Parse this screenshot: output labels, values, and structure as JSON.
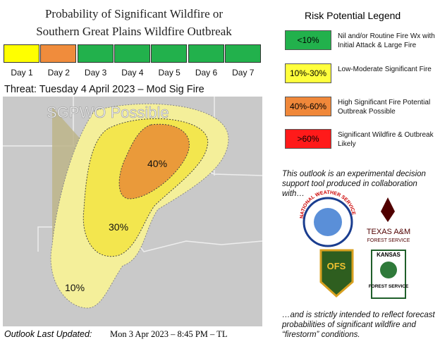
{
  "header": {
    "title_lines": [
      "Probability of  Significant Wildfire or",
      "Southern Great Plains Wildfire Outbreak"
    ]
  },
  "days": [
    {
      "label": "Day 1",
      "color": "#ffff00"
    },
    {
      "label": "Day 2",
      "color": "#f08c3c"
    },
    {
      "label": "Day 3",
      "color": "#22b14c"
    },
    {
      "label": "Day 4",
      "color": "#22b14c"
    },
    {
      "label": "Day 5",
      "color": "#22b14c"
    },
    {
      "label": "Day 6",
      "color": "#22b14c"
    },
    {
      "label": "Day 7",
      "color": "#22b14c"
    }
  ],
  "threat": "Threat: Tuesday 4 April 2023 – Mod Sig Fire",
  "map": {
    "overlay_label": "SGPWO Possible",
    "contour_labels": [
      "40%",
      "30%",
      "10%"
    ]
  },
  "legend": {
    "title": "Risk Potential Legend",
    "items": [
      {
        "range": "<10%",
        "color": "#22b14c",
        "description": "Nil and/or Routine Fire Wx with Initial Attack & Large Fire"
      },
      {
        "range": "10%-30%",
        "color": "#ffff3c",
        "description": "Low-Moderate Significant Fire"
      },
      {
        "range": "40%-60%",
        "color": "#f0883a",
        "description": "High Significant Fire Potential Outbreak Possible"
      },
      {
        "range": ">60%",
        "color": "#ff1a1a",
        "description": "Significant Wildfire & Outbreak Likely"
      }
    ]
  },
  "note": "This outlook is an experimental decision support tool produced in collaboration with…",
  "logos": {
    "nws": "NATIONAL WEATHER SERVICE",
    "tamu_1": "TEXAS A&M",
    "tamu_2": "FOREST SERVICE",
    "ofs": "OFS",
    "kfs_1": "KANSAS",
    "kfs_2": "FOREST SERVICE"
  },
  "closing": "…and is strictly intended to reflect forecast probabilities of significant wildfire and “firestorm” conditions.",
  "footer": {
    "label": "Outlook Last Updated:",
    "updated": "Mon 3 Apr 2023 – 8:45 PM – TL"
  }
}
